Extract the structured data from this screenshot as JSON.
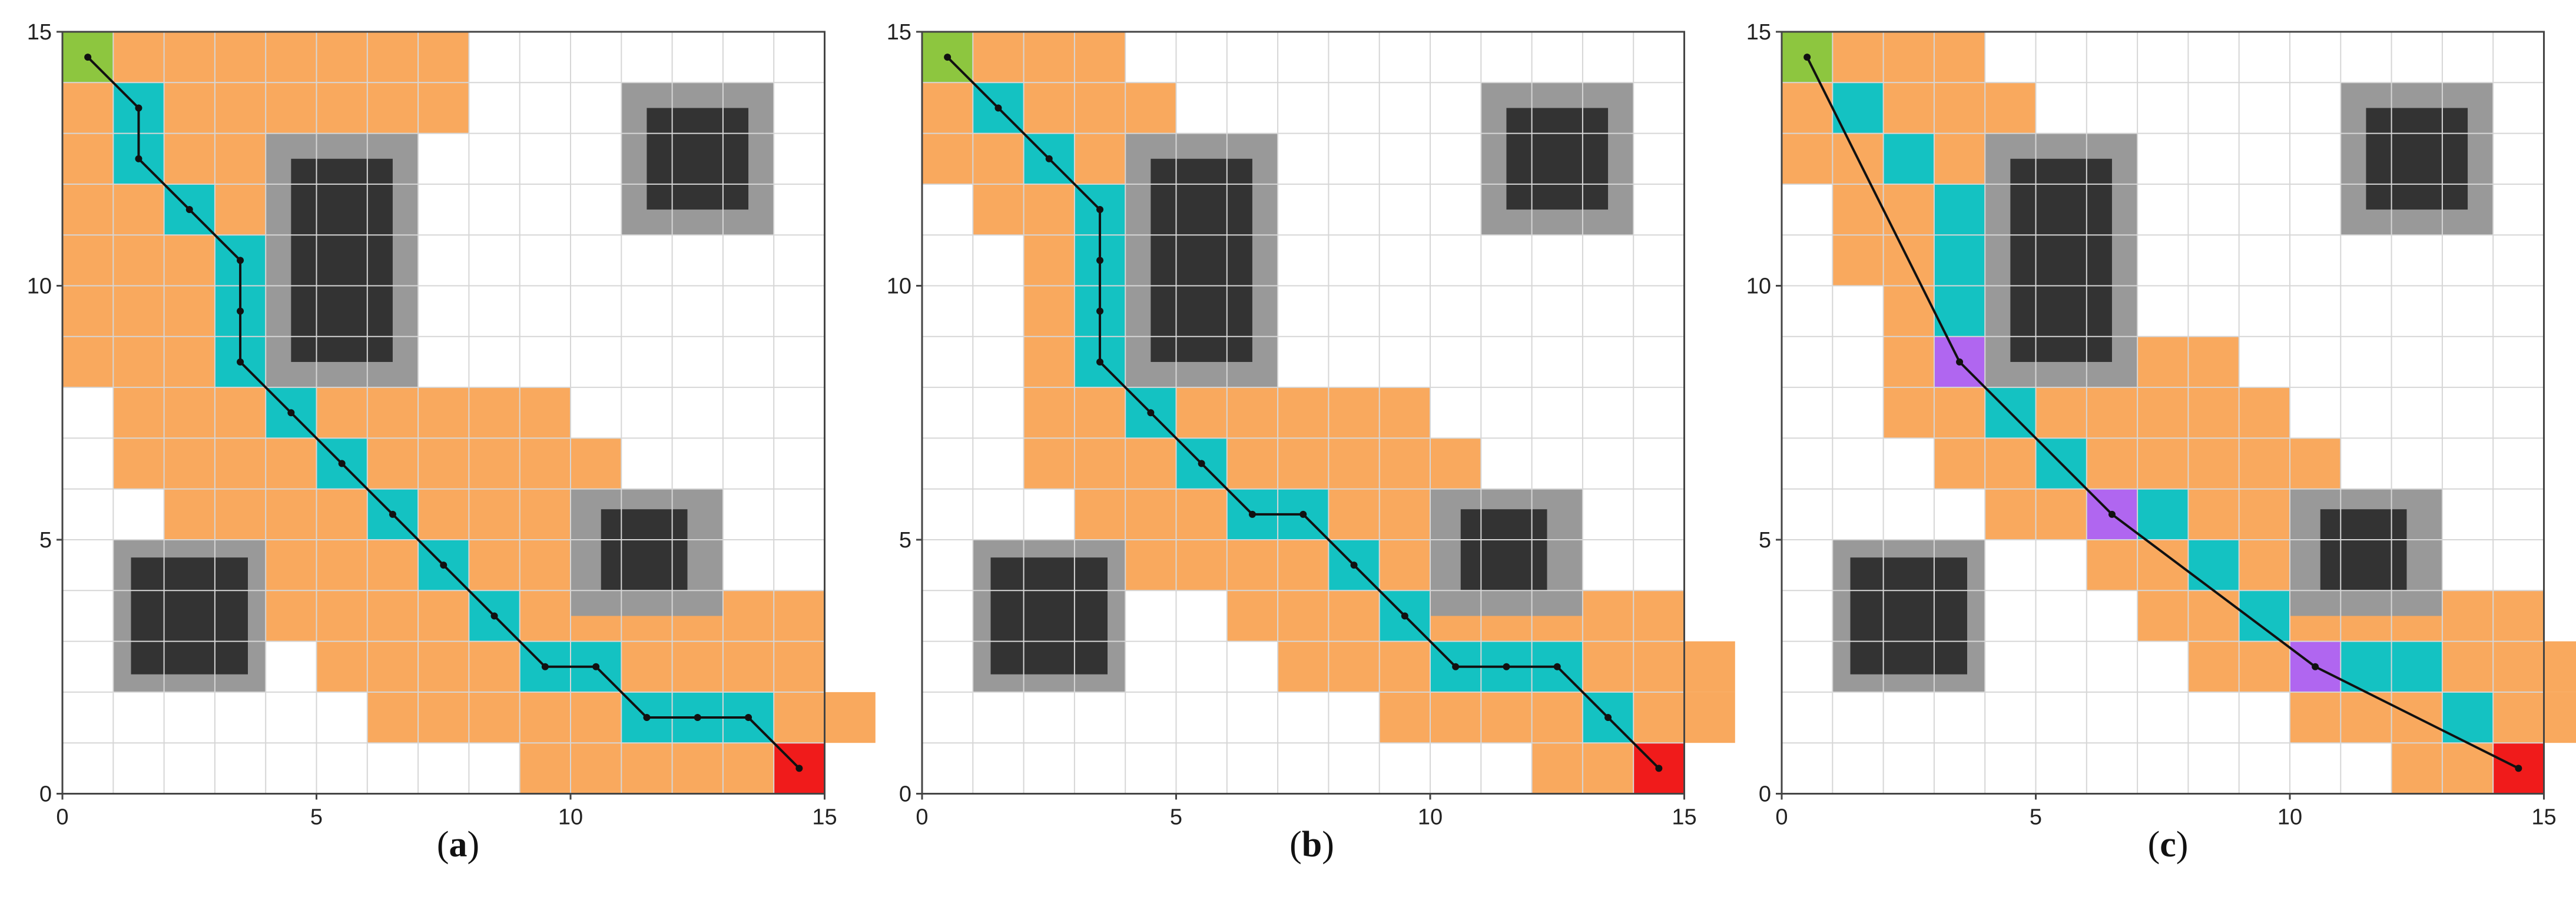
{
  "figure": {
    "axes": {
      "xlim": [
        0,
        15
      ],
      "ylim": [
        0,
        15
      ],
      "ticks": [
        0,
        5,
        10,
        15
      ],
      "tick_labels": [
        "0",
        "5",
        "10",
        "15"
      ]
    },
    "colors": {
      "visited": "#f9a95e",
      "path_cell": "#14c2c2",
      "start": "#8dc63f",
      "goal": "#f01b1b",
      "turn_point": "#b066f0",
      "obstacle": "#333333",
      "obstacle_margin": "#999999",
      "grid": "#d6d6d6",
      "path_line": "#111111"
    },
    "panels": [
      {
        "id": "a",
        "caption_open": "(",
        "caption_letter": "a",
        "caption_close": ")",
        "start": [
          0,
          14
        ],
        "goal": [
          14,
          0
        ],
        "visited_rows": [
          {
            "y": 14,
            "x": [
              [
                1,
                7
              ]
            ]
          },
          {
            "y": 13,
            "x": [
              [
                0,
                7
              ]
            ]
          },
          {
            "y": 12,
            "x": [
              [
                0,
                4
              ]
            ]
          },
          {
            "y": 11,
            "x": [
              [
                0,
                4
              ]
            ]
          },
          {
            "y": 10,
            "x": [
              [
                0,
                4
              ]
            ]
          },
          {
            "y": 9,
            "x": [
              [
                0,
                4
              ]
            ]
          },
          {
            "y": 8,
            "x": [
              [
                0,
                4
              ]
            ]
          },
          {
            "y": 7,
            "x": [
              [
                1,
                9
              ]
            ]
          },
          {
            "y": 6,
            "x": [
              [
                1,
                10
              ]
            ]
          },
          {
            "y": 5,
            "x": [
              [
                2,
                11
              ]
            ]
          },
          {
            "y": 4,
            "x": [
              [
                3,
                10
              ]
            ]
          },
          {
            "y": 3,
            "x": [
              [
                4,
                14
              ]
            ]
          },
          {
            "y": 2,
            "x": [
              [
                5,
                14
              ]
            ]
          },
          {
            "y": 1,
            "x": [
              [
                6,
                15
              ]
            ]
          },
          {
            "y": 0,
            "x": [
              [
                9,
                14
              ]
            ]
          }
        ],
        "path_cells": [
          [
            1,
            13
          ],
          [
            1,
            12
          ],
          [
            2,
            11
          ],
          [
            3,
            10
          ],
          [
            3,
            9
          ],
          [
            3,
            8
          ],
          [
            4,
            7
          ],
          [
            5,
            6
          ],
          [
            6,
            5
          ],
          [
            7,
            4
          ],
          [
            8,
            3
          ],
          [
            9,
            2
          ],
          [
            10,
            2
          ],
          [
            11,
            1
          ],
          [
            12,
            1
          ],
          [
            13,
            1
          ]
        ],
        "turn_cells": [],
        "path_points": [
          [
            0.5,
            14.5
          ],
          [
            1.5,
            13.5
          ],
          [
            1.5,
            12.5
          ],
          [
            2.5,
            11.5
          ],
          [
            3.5,
            10.5
          ],
          [
            3.5,
            9.5
          ],
          [
            3.5,
            8.5
          ],
          [
            4.5,
            7.5
          ],
          [
            5.5,
            6.5
          ],
          [
            6.5,
            5.5
          ],
          [
            7.5,
            4.5
          ],
          [
            8.5,
            3.5
          ],
          [
            9.5,
            2.5
          ],
          [
            10.5,
            2.5
          ],
          [
            11.5,
            1.5
          ],
          [
            12.5,
            1.5
          ],
          [
            13.5,
            1.5
          ],
          [
            14.5,
            0.5
          ]
        ]
      },
      {
        "id": "b",
        "caption_open": "(",
        "caption_letter": "b",
        "caption_close": ")",
        "start": [
          0,
          14
        ],
        "goal": [
          14,
          0
        ],
        "visited_rows": [
          {
            "y": 14,
            "x": [
              [
                1,
                3
              ]
            ]
          },
          {
            "y": 13,
            "x": [
              [
                0,
                4
              ]
            ]
          },
          {
            "y": 12,
            "x": [
              [
                0,
                4
              ]
            ]
          },
          {
            "y": 11,
            "x": [
              [
                1,
                4
              ]
            ]
          },
          {
            "y": 10,
            "x": [
              [
                2,
                4
              ]
            ]
          },
          {
            "y": 9,
            "x": [
              [
                2,
                4
              ]
            ]
          },
          {
            "y": 8,
            "x": [
              [
                2,
                4
              ]
            ]
          },
          {
            "y": 7,
            "x": [
              [
                2,
                9
              ]
            ]
          },
          {
            "y": 6,
            "x": [
              [
                2,
                10
              ]
            ]
          },
          {
            "y": 5,
            "x": [
              [
                3,
                11
              ]
            ]
          },
          {
            "y": 4,
            "x": [
              [
                4,
                10
              ]
            ]
          },
          {
            "y": 3,
            "x": [
              [
                6,
                14
              ]
            ]
          },
          {
            "y": 2,
            "x": [
              [
                7,
                15
              ]
            ]
          },
          {
            "y": 1,
            "x": [
              [
                9,
                15
              ]
            ]
          },
          {
            "y": 0,
            "x": [
              [
                12,
                14
              ]
            ]
          }
        ],
        "path_cells": [
          [
            1,
            13
          ],
          [
            2,
            12
          ],
          [
            3,
            11
          ],
          [
            3,
            10
          ],
          [
            3,
            9
          ],
          [
            3,
            8
          ],
          [
            4,
            7
          ],
          [
            5,
            6
          ],
          [
            6,
            5
          ],
          [
            7,
            5
          ],
          [
            8,
            4
          ],
          [
            9,
            3
          ],
          [
            10,
            2
          ],
          [
            11,
            2
          ],
          [
            12,
            2
          ],
          [
            13,
            1
          ]
        ],
        "turn_cells": [],
        "path_points": [
          [
            0.5,
            14.5
          ],
          [
            1.5,
            13.5
          ],
          [
            2.5,
            12.5
          ],
          [
            3.5,
            11.5
          ],
          [
            3.5,
            10.5
          ],
          [
            3.5,
            9.5
          ],
          [
            3.5,
            8.5
          ],
          [
            4.5,
            7.5
          ],
          [
            5.5,
            6.5
          ],
          [
            6.5,
            5.5
          ],
          [
            7.5,
            5.5
          ],
          [
            8.5,
            4.5
          ],
          [
            9.5,
            3.5
          ],
          [
            10.5,
            2.5
          ],
          [
            11.5,
            2.5
          ],
          [
            12.5,
            2.5
          ],
          [
            13.5,
            1.5
          ],
          [
            14.5,
            0.5
          ]
        ]
      },
      {
        "id": "c",
        "caption_open": "(",
        "caption_letter": "c",
        "caption_close": ")",
        "start": [
          0,
          14
        ],
        "goal": [
          14,
          0
        ],
        "visited_rows": [
          {
            "y": 14,
            "x": [
              [
                1,
                3
              ]
            ]
          },
          {
            "y": 13,
            "x": [
              [
                0,
                4
              ]
            ]
          },
          {
            "y": 12,
            "x": [
              [
                0,
                4
              ]
            ]
          },
          {
            "y": 11,
            "x": [
              [
                1,
                4
              ]
            ]
          },
          {
            "y": 10,
            "x": [
              [
                1,
                4
              ]
            ]
          },
          {
            "y": 9,
            "x": [
              [
                2,
                4
              ]
            ]
          },
          {
            "y": 8,
            "x": [
              [
                2,
                4
              ],
              [
                7,
                8
              ]
            ]
          },
          {
            "y": 7,
            "x": [
              [
                2,
                9
              ]
            ]
          },
          {
            "y": 6,
            "x": [
              [
                3,
                10
              ]
            ]
          },
          {
            "y": 5,
            "x": [
              [
                4,
                11
              ]
            ]
          },
          {
            "y": 4,
            "x": [
              [
                6,
                10
              ]
            ]
          },
          {
            "y": 3,
            "x": [
              [
                7,
                14
              ]
            ]
          },
          {
            "y": 2,
            "x": [
              [
                8,
                15
              ]
            ]
          },
          {
            "y": 1,
            "x": [
              [
                10,
                15
              ]
            ]
          },
          {
            "y": 0,
            "x": [
              [
                12,
                14
              ]
            ]
          }
        ],
        "path_cells": [
          [
            1,
            13
          ],
          [
            2,
            12
          ],
          [
            3,
            11
          ],
          [
            3,
            10
          ],
          [
            3,
            9
          ],
          [
            4,
            7
          ],
          [
            5,
            6
          ],
          [
            7,
            5
          ],
          [
            8,
            4
          ],
          [
            9,
            3
          ],
          [
            11,
            2
          ],
          [
            12,
            2
          ],
          [
            13,
            1
          ]
        ],
        "turn_cells": [
          [
            3,
            8
          ],
          [
            6,
            5
          ],
          [
            10,
            2
          ]
        ],
        "path_points": [
          [
            0.5,
            14.5
          ],
          [
            3.5,
            8.5
          ],
          [
            6.5,
            5.5
          ],
          [
            10.5,
            2.5
          ],
          [
            14.5,
            0.5
          ]
        ]
      }
    ],
    "obstacles": [
      {
        "outer": [
          4,
          8,
          3,
          5
        ],
        "inner": [
          4.5,
          8.5,
          2,
          4
        ]
      },
      {
        "outer": [
          11,
          11,
          3,
          3
        ],
        "inner": [
          11.5,
          11.5,
          2,
          2
        ]
      },
      {
        "outer": [
          1,
          2,
          3,
          3
        ],
        "inner": [
          1.35,
          2.35,
          2.3,
          2.3
        ]
      },
      {
        "outer": [
          10,
          3.5,
          3,
          2.5
        ],
        "inner": [
          10.6,
          4,
          1.7,
          1.6
        ]
      }
    ]
  }
}
